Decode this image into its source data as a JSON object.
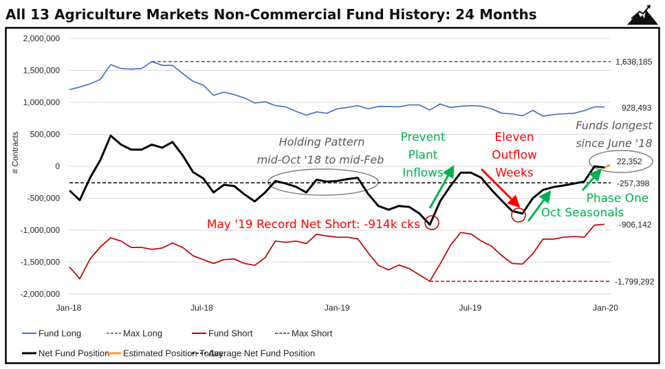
{
  "chart_data": {
    "type": "line",
    "title": "All 13 Agriculture Markets Non-Commercial Fund History: 24 Months",
    "ylabel": "# Contracts",
    "xlabel": "",
    "ylim": [
      -2000000,
      2000000
    ],
    "yticks": [
      "2,000,000",
      "1,500,000",
      "1,000,000",
      "500,000",
      "0",
      "-500,000",
      "-1,000,000",
      "-1,500,000",
      "-2,000,000"
    ],
    "ytick_values": [
      2000000,
      1500000,
      1000000,
      500000,
      0,
      -500000,
      -1000000,
      -1500000,
      -2000000
    ],
    "xticks": [
      "Jan-18",
      "Jul-18",
      "Jan-19",
      "Jul-19",
      "Jan-20"
    ],
    "xtick_dates": [
      "2018-01-01",
      "2018-07-01",
      "2019-01-01",
      "2019-07-01",
      "2020-01-01"
    ],
    "xlim": [
      "2018-01-01",
      "2020-01-08"
    ],
    "grid": true,
    "legend_position": "bottom",
    "dates": [
      "2018-01-02",
      "2018-01-16",
      "2018-01-30",
      "2018-02-13",
      "2018-02-27",
      "2018-03-13",
      "2018-03-27",
      "2018-04-10",
      "2018-04-24",
      "2018-05-08",
      "2018-05-22",
      "2018-06-05",
      "2018-06-19",
      "2018-07-03",
      "2018-07-17",
      "2018-07-31",
      "2018-08-14",
      "2018-08-28",
      "2018-09-11",
      "2018-09-25",
      "2018-10-09",
      "2018-10-23",
      "2018-11-06",
      "2018-11-20",
      "2018-12-04",
      "2018-12-18",
      "2019-01-01",
      "2019-01-15",
      "2019-01-29",
      "2019-02-12",
      "2019-02-26",
      "2019-03-12",
      "2019-03-26",
      "2019-04-09",
      "2019-04-23",
      "2019-05-07",
      "2019-05-21",
      "2019-06-04",
      "2019-06-18",
      "2019-07-02",
      "2019-07-16",
      "2019-07-30",
      "2019-08-13",
      "2019-08-27",
      "2019-09-10",
      "2019-09-24",
      "2019-10-08",
      "2019-10-22",
      "2019-11-05",
      "2019-11-19",
      "2019-12-03",
      "2019-12-17",
      "2019-12-31"
    ],
    "series": [
      {
        "name": "Fund Long",
        "color": "#4472c4",
        "style": "solid",
        "values": [
          1200000,
          1240000,
          1290000,
          1360000,
          1590000,
          1530000,
          1520000,
          1530000,
          1638185,
          1580000,
          1580000,
          1450000,
          1330000,
          1270000,
          1110000,
          1160000,
          1120000,
          1070000,
          990000,
          1010000,
          950000,
          930000,
          860000,
          800000,
          850000,
          830000,
          900000,
          920000,
          950000,
          900000,
          935000,
          935000,
          930000,
          960000,
          960000,
          880000,
          975000,
          920000,
          940000,
          950000,
          940000,
          900000,
          830000,
          820000,
          790000,
          875000,
          785000,
          810000,
          820000,
          830000,
          870000,
          930000,
          928493
        ]
      },
      {
        "name": "Fund Short",
        "color": "#c00000",
        "style": "solid",
        "values": [
          -1575000,
          -1760000,
          -1450000,
          -1260000,
          -1120000,
          -1170000,
          -1270000,
          -1270000,
          -1300000,
          -1280000,
          -1200000,
          -1270000,
          -1400000,
          -1460000,
          -1520000,
          -1460000,
          -1450000,
          -1520000,
          -1550000,
          -1430000,
          -1170000,
          -1190000,
          -1170000,
          -1210000,
          -1065000,
          -1090000,
          -1110000,
          -1110000,
          -1135000,
          -1350000,
          -1550000,
          -1620000,
          -1545000,
          -1600000,
          -1700000,
          -1799292,
          -1530000,
          -1240000,
          -1035000,
          -1060000,
          -1170000,
          -1250000,
          -1400000,
          -1520000,
          -1530000,
          -1370000,
          -1140000,
          -1140000,
          -1110000,
          -1100000,
          -1110000,
          -920000,
          -906142
        ]
      },
      {
        "name": "Net Fund Position",
        "color": "#000000",
        "style": "solid",
        "values": [
          -380000,
          -530000,
          -180000,
          100000,
          480000,
          340000,
          260000,
          260000,
          340000,
          290000,
          380000,
          170000,
          -90000,
          -190000,
          -410000,
          -290000,
          -310000,
          -440000,
          -550000,
          -410000,
          -230000,
          -270000,
          -320000,
          -410000,
          -210000,
          -240000,
          -230000,
          -200000,
          -180000,
          -430000,
          -620000,
          -680000,
          -620000,
          -635000,
          -740000,
          -914000,
          -550000,
          -310000,
          -100000,
          -100000,
          -180000,
          -370000,
          -540000,
          -700000,
          -740000,
          -500000,
          -370000,
          -325000,
          -300000,
          -270000,
          -240000,
          0,
          -20000
        ]
      }
    ],
    "estimated": {
      "name": "Estimated Position Today",
      "color": "#ff9933",
      "points": [
        [
          "2019-12-31",
          -20000
        ],
        [
          "2020-01-07",
          22352
        ]
      ]
    },
    "reference_lines": [
      {
        "name": "Max Long",
        "color": "#44546a",
        "value": 1638185,
        "label": "1,638,185",
        "from": "2018-04-24"
      },
      {
        "name": "Max Short",
        "color": "#c00000",
        "value": -1799292,
        "label": "-1,799,292",
        "from": "2019-05-07"
      },
      {
        "name": "Average Net Fund Position",
        "color": "#000000",
        "value": -257398,
        "label": "-257,398",
        "from": "2018-01-02"
      }
    ],
    "end_labels": {
      "long": "928,493",
      "net": "22,352",
      "short": "-906,142"
    },
    "annotations": {
      "holding": [
        "Holding Pattern",
        "mid-Oct '18 to mid-Feb"
      ],
      "prevent": [
        "Prevent",
        "Plant",
        "Inflows"
      ],
      "eleven": [
        "Eleven",
        "Outflow",
        "Weeks"
      ],
      "funds_longest": [
        "Funds longest",
        "since June '18"
      ],
      "phase_one": "Phase One",
      "oct_seasonals": "Oct Seasonals",
      "record_short": "May '19 Record Net Short: -914k cks"
    },
    "legend": [
      {
        "label": "Fund Long",
        "color": "#4472c4",
        "dash": false,
        "width": 2
      },
      {
        "label": "Max Long",
        "color": "#44546a",
        "dash": true,
        "width": 1.5
      },
      {
        "label": "Fund Short",
        "color": "#c00000",
        "dash": false,
        "width": 2
      },
      {
        "label": "Max Short",
        "color": "#c00000",
        "dash": true,
        "width": 1.5
      },
      {
        "label": "Net Fund Position",
        "color": "#000000",
        "dash": false,
        "width": 3
      },
      {
        "label": "Estimated Position Today",
        "color": "#ff9933",
        "dash": false,
        "width": 3
      },
      {
        "label": "Average Net Fund Position",
        "color": "#000000",
        "dash": true,
        "width": 1.5
      }
    ]
  },
  "logo": {
    "icon": "mountain-arrow-icon"
  }
}
